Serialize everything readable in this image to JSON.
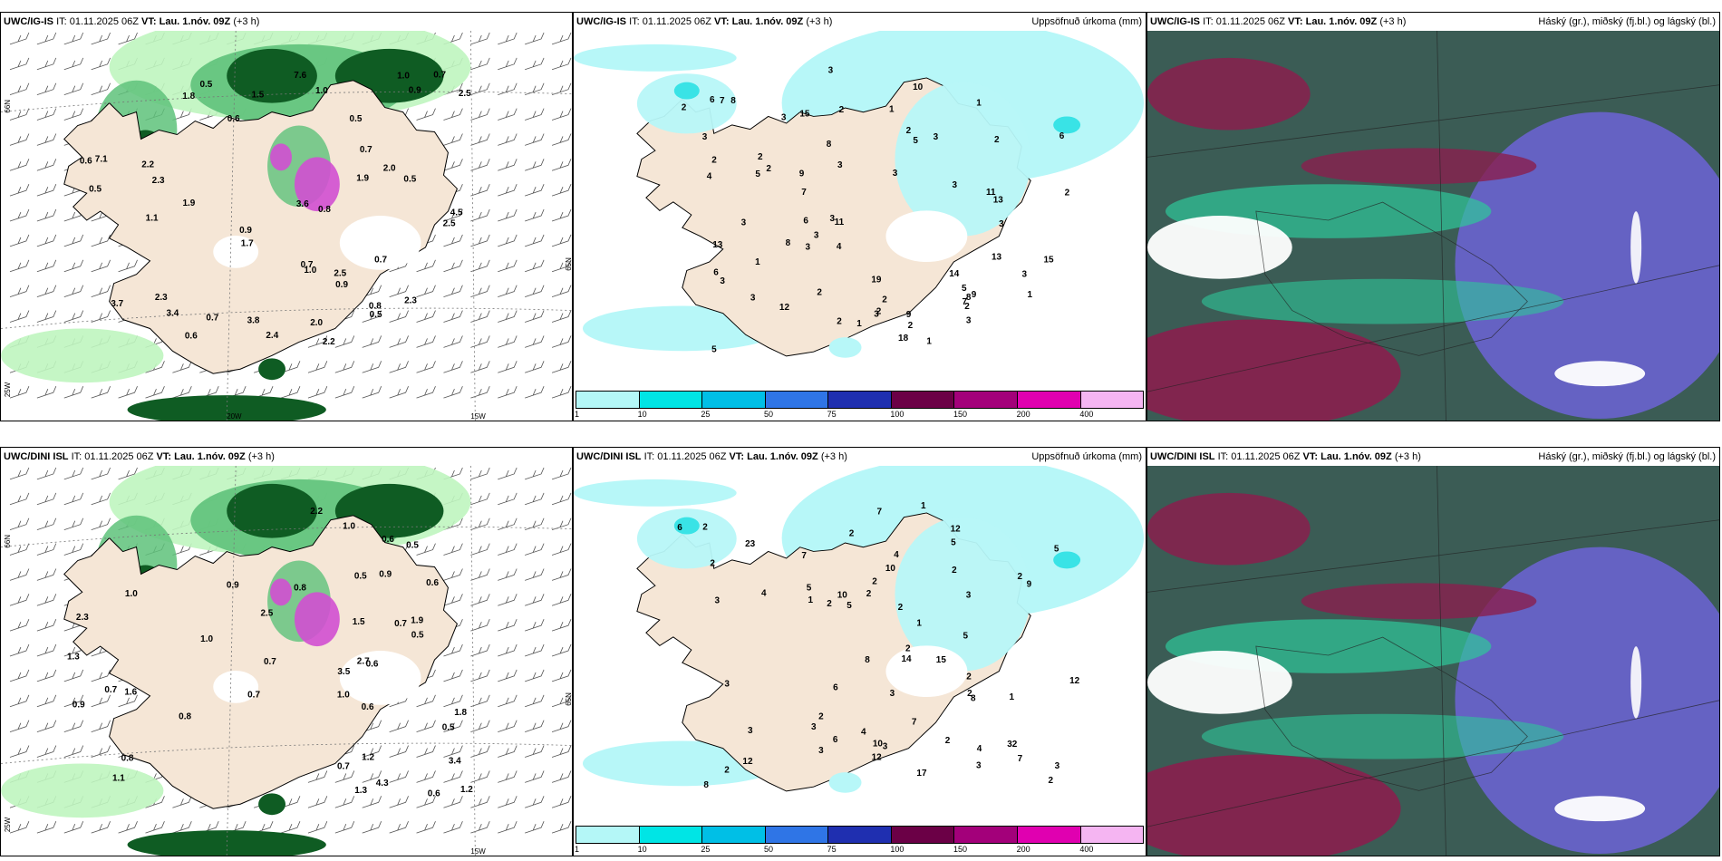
{
  "panels": {
    "ig_wind": {
      "model": "UWC/IG-IS",
      "meta": "IT: 01.11.2025 06Z",
      "vt_label": "VT:",
      "vt": "Lau. 1.nóv. 09Z",
      "offset": "(+3 h)",
      "right": "",
      "lat_labels": [
        "66N",
        "65N",
        "25W"
      ],
      "lon_labels": [
        "20W",
        "15W"
      ],
      "values": [
        "2.2",
        "1.8",
        "2.3",
        "2.2",
        "2.0",
        "2.0",
        "2.5",
        "1.9",
        "1.7",
        "3.4",
        "3.7",
        "0.6",
        "0.9",
        "0.7",
        "1.9",
        "1.0",
        "0.5",
        "0.9",
        "0.7",
        "0.5",
        "0.8",
        "1.0",
        "0.6",
        "0.5",
        "0.8",
        "0.7",
        "1.1",
        "2.3",
        "2.4",
        "0.6",
        "0.9",
        "0.7",
        "0.5",
        "0.7",
        "0.5",
        "3.8",
        "7.6",
        "7.1",
        "4.5",
        "2.5",
        "1.5",
        "3.6",
        "2.5",
        "2.3",
        "1.0"
      ]
    },
    "ig_precip": {
      "model": "UWC/IG-IS",
      "meta": "IT: 01.11.2025 06Z",
      "vt_label": "VT:",
      "vt": "Lau. 1.nóv. 09Z",
      "offset": "(+3 h)",
      "right": "Uppsöfnuð úrkoma (mm)",
      "values": [
        "2",
        "2",
        "3",
        "2",
        "2",
        "3",
        "2",
        "13",
        "11",
        "2",
        "1",
        "1",
        "1",
        "1",
        "1",
        "2",
        "5",
        "8",
        "15",
        "13",
        "8",
        "3",
        "5",
        "7",
        "9",
        "12",
        "10",
        "18",
        "15",
        "9",
        "6",
        "14",
        "13",
        "19",
        "7",
        "8",
        "7",
        "9",
        "11",
        "8",
        "5",
        "3",
        "6",
        "6",
        "4",
        "2",
        "2",
        "4",
        "3",
        "2",
        "3",
        "3",
        "3",
        "3",
        "6",
        "2",
        "3",
        "3",
        "3",
        "2",
        "3",
        "5",
        "2",
        "3",
        "1",
        "3",
        "3",
        "2",
        "3"
      ]
    },
    "ig_cloud": {
      "model": "UWC/IG-IS",
      "meta": "IT: 01.11.2025 06Z",
      "vt_label": "VT:",
      "vt": "Lau. 1.nóv. 09Z",
      "offset": "(+3 h)",
      "right": "Háský (gr.), miðský (fj.bl.) og lágský (bl.)"
    },
    "dini_wind": {
      "model": "UWC/DINI ISL",
      "meta": "IT: 01.11.2025 06Z",
      "vt_label": "VT:",
      "vt": "Lau. 1.nóv. 09Z",
      "offset": "(+3 h)",
      "right": "",
      "lat_labels": [
        "66N",
        "65N",
        "25W"
      ],
      "lon_labels": [
        "15W"
      ],
      "values": [
        "1.0",
        "1.8",
        "0.7",
        "0.5",
        "0.7",
        "0.9",
        "1.9",
        "2.5",
        "3.4",
        "4.3",
        "2.7",
        "3.5",
        "0.9",
        "0.6",
        "0.8",
        "0.6",
        "0.5",
        "0.7",
        "0.6",
        "0.9",
        "0.7",
        "1.3",
        "1.5",
        "1.0",
        "0.5",
        "0.8",
        "1.0",
        "0.5",
        "1.2",
        "1.6",
        "0.6",
        "2.2",
        "2.3",
        "1.2",
        "1.0",
        "1.1",
        "0.8",
        "0.7",
        "0.6",
        "1.3"
      ]
    },
    "dini_precip": {
      "model": "UWC/DINI ISL",
      "meta": "IT: 01.11.2025 06Z",
      "vt_label": "VT:",
      "vt": "Lau. 1.nóv. 09Z",
      "offset": "(+3 h)",
      "right": "Uppsöfnuð úrkoma (mm)",
      "values": [
        "2",
        "1",
        "2",
        "3",
        "2",
        "1",
        "32",
        "12",
        "4",
        "3",
        "2",
        "1",
        "6",
        "7",
        "2",
        "5",
        "2",
        "3",
        "8",
        "5",
        "6",
        "12",
        "12",
        "15",
        "8",
        "5",
        "10",
        "10",
        "9",
        "7",
        "7",
        "6",
        "4",
        "8",
        "14",
        "17",
        "10",
        "3",
        "3",
        "4",
        "4",
        "2",
        "7",
        "3",
        "5",
        "2",
        "2",
        "3",
        "12",
        "3",
        "2",
        "2",
        "2",
        "3",
        "3",
        "23",
        "2",
        "5",
        "1",
        "2",
        "2",
        "2"
      ]
    },
    "dini_cloud": {
      "model": "UWC/DINI ISL",
      "meta": "IT: 01.11.2025 06Z",
      "vt_label": "VT:",
      "vt": "Lau. 1.nóv. 09Z",
      "offset": "(+3 h)",
      "right": "Háský (gr.), miðský (fj.bl.) og lágský (bl.)"
    }
  },
  "colorbar": {
    "ticks": [
      "1",
      "10",
      "25",
      "50",
      "75",
      "100",
      "150",
      "200",
      "400"
    ],
    "colors": [
      "#b4f7f7",
      "#00e5e5",
      "#00bfe6",
      "#2f75e6",
      "#1f2fb0",
      "#6b0046",
      "#a3007a",
      "#e000b0",
      "#f5b5f2"
    ]
  },
  "colors": {
    "land": "#f5e6d6",
    "precip_light": "#b7f7f8",
    "precip_mid": "#39e3e6",
    "wind_green_light": "#bff5bf",
    "wind_green": "#5ec27a",
    "wind_green_dark": "#0f5c23",
    "magenta": "#d24fd2",
    "cloud_dark": "#3b5c55",
    "cloud_teal": "#2fc79a",
    "cloud_purple": "#6a63cf",
    "cloud_maroon": "#8a1f4e"
  }
}
